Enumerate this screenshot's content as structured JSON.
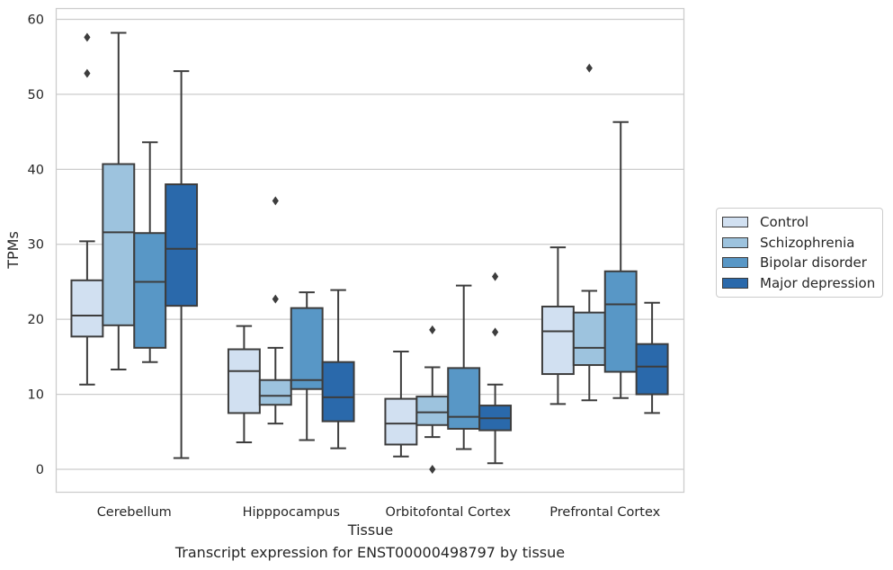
{
  "caption": "Transcript expression for ENST00000498797 by tissue",
  "chart_data": {
    "type": "boxplot",
    "xlabel": "Tissue",
    "ylabel": "TPMs",
    "ylim": [
      -3,
      61.5
    ],
    "yticks": [
      0,
      10,
      20,
      30,
      40,
      50,
      60
    ],
    "grid": "horizontal",
    "legend_position": "right",
    "categories": [
      "Cerebellum",
      "Hipppocampus",
      "Orbitofontal Cortex",
      "Prefrontal Cortex"
    ],
    "series": [
      {
        "name": "Control",
        "color": "#d1e0f1",
        "boxes": [
          {
            "min": 11.3,
            "q1": 17.7,
            "median": 20.5,
            "q3": 25.2,
            "max": 30.4,
            "outliers": [
              52.8,
              57.6
            ]
          },
          {
            "min": 3.6,
            "q1": 7.5,
            "median": 13.1,
            "q3": 16.0,
            "max": 19.1,
            "outliers": []
          },
          {
            "min": 1.7,
            "q1": 3.3,
            "median": 6.1,
            "q3": 9.4,
            "max": 15.7,
            "outliers": []
          },
          {
            "min": 8.7,
            "q1": 12.7,
            "median": 18.4,
            "q3": 21.7,
            "max": 29.6,
            "outliers": []
          }
        ]
      },
      {
        "name": "Schizophrenia",
        "color": "#9dc3de",
        "boxes": [
          {
            "min": 13.3,
            "q1": 19.2,
            "median": 31.6,
            "q3": 40.7,
            "max": 58.2,
            "outliers": []
          },
          {
            "min": 6.1,
            "q1": 8.6,
            "median": 9.8,
            "q3": 11.9,
            "max": 16.2,
            "outliers": [
              22.7,
              35.8
            ]
          },
          {
            "min": 4.3,
            "q1": 5.9,
            "median": 7.6,
            "q3": 9.7,
            "max": 13.6,
            "outliers": [
              18.6,
              0.0
            ]
          },
          {
            "min": 9.2,
            "q1": 13.9,
            "median": 16.2,
            "q3": 20.9,
            "max": 23.8,
            "outliers": [
              53.5
            ]
          }
        ]
      },
      {
        "name": "Bipolar disorder",
        "color": "#5897c6",
        "boxes": [
          {
            "min": 14.3,
            "q1": 16.2,
            "median": 25.0,
            "q3": 31.5,
            "max": 43.6,
            "outliers": []
          },
          {
            "min": 3.9,
            "q1": 10.7,
            "median": 11.9,
            "q3": 21.5,
            "max": 23.6,
            "outliers": []
          },
          {
            "min": 2.7,
            "q1": 5.4,
            "median": 7.0,
            "q3": 13.5,
            "max": 24.5,
            "outliers": []
          },
          {
            "min": 9.5,
            "q1": 13.0,
            "median": 22.0,
            "q3": 26.4,
            "max": 46.3,
            "outliers": []
          }
        ]
      },
      {
        "name": "Major depression",
        "color": "#2a69ab",
        "boxes": [
          {
            "min": 1.5,
            "q1": 21.8,
            "median": 29.4,
            "q3": 38.0,
            "max": 53.1,
            "outliers": []
          },
          {
            "min": 2.8,
            "q1": 6.4,
            "median": 9.6,
            "q3": 14.3,
            "max": 23.9,
            "outliers": []
          },
          {
            "min": 0.8,
            "q1": 5.2,
            "median": 6.8,
            "q3": 8.5,
            "max": 11.3,
            "outliers": [
              18.3,
              25.7
            ]
          },
          {
            "min": 7.5,
            "q1": 10.0,
            "median": 13.7,
            "q3": 16.7,
            "max": 22.2,
            "outliers": []
          }
        ]
      }
    ]
  }
}
